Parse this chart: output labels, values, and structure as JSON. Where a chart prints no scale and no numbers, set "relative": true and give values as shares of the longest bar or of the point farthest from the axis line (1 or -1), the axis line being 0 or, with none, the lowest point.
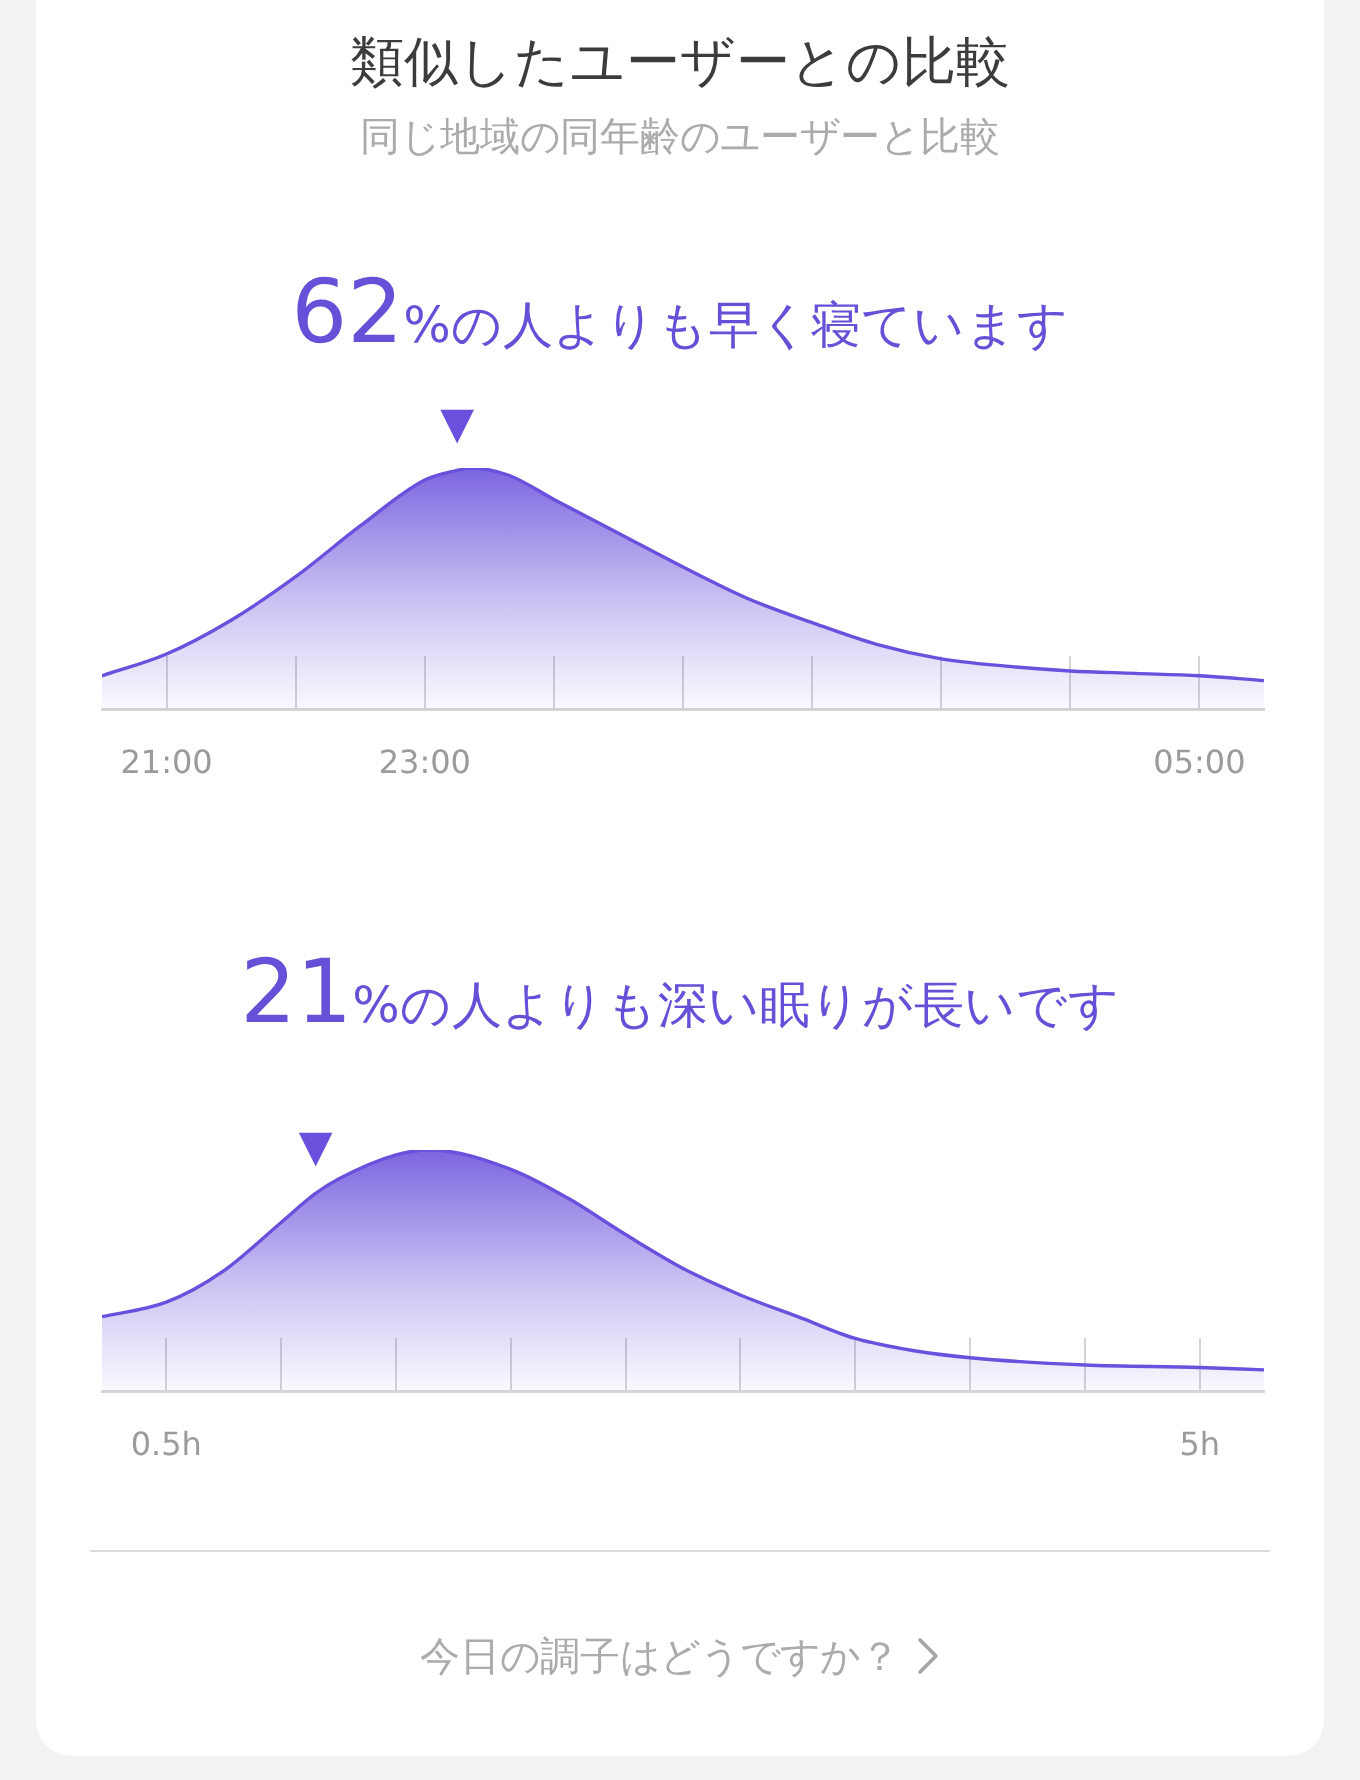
{
  "chart_data": [
    {
      "type": "other",
      "title": "類似したユーザーとの比較",
      "subtitle": "同じ地域の同年齢のユーザーと比較"
    },
    {
      "type": "area",
      "title": "62%の人よりも早く寝ています",
      "relative": true,
      "grid": "x",
      "x": [
        "2000-01-01T20:30",
        "2000-01-01T21:00",
        "2000-01-01T21:30",
        "2000-01-01T22:00",
        "2000-01-01T22:30",
        "2000-01-01T23:00",
        "2000-01-01T23:15",
        "2000-01-01T23:21",
        "2000-01-01T23:39",
        "2000-01-02T00:00",
        "2000-01-02T00:30",
        "2000-01-02T01:00",
        "2000-01-02T01:30",
        "2000-01-02T02:00",
        "2000-01-02T02:30",
        "2000-01-02T03:00",
        "2000-01-02T03:30",
        "2000-01-02T04:00",
        "2000-01-02T04:30",
        "2000-01-02T05:00",
        "2000-01-02T05:30"
      ],
      "series": [
        {
          "color": "#6a50dc",
          "values": [
            0.14,
            0.23,
            0.37,
            0.55,
            0.76,
            0.95,
            0.99,
            1,
            0.97,
            0.87,
            0.73,
            0.59,
            0.46,
            0.36,
            0.27,
            0.21,
            0.18,
            0.16,
            0.15,
            0.14,
            0.12
          ]
        }
      ],
      "xlim": [
        "2000-01-01T20:30",
        "2000-01-02T05:30"
      ],
      "xticks": [
        {
          "value": "2000-01-01T21:00",
          "label": "21:00"
        },
        {
          "value": "2000-01-01T22:00",
          "label": null
        },
        {
          "value": "2000-01-01T23:00",
          "label": "23:00"
        },
        {
          "value": "2000-01-02T00:00",
          "label": null
        },
        {
          "value": "2000-01-02T01:00",
          "label": null
        },
        {
          "value": "2000-01-02T02:00",
          "label": null
        },
        {
          "value": "2000-01-02T03:00",
          "label": null
        },
        {
          "value": "2000-01-02T04:00",
          "label": null
        },
        {
          "value": "2000-01-02T05:00",
          "label": "05:00"
        }
      ],
      "annotations": [
        {
          "text": "▼",
          "x": "2000-01-01T23:15",
          "y": 0.99
        }
      ]
    },
    {
      "type": "area",
      "title": "21%の人よりも深い眠りが長いです",
      "relative": true,
      "grid": "x",
      "x": [
        0.22,
        0.5,
        0.75,
        1,
        1.15,
        1.25,
        1.5,
        1.65,
        2,
        2.25,
        2.5,
        2.75,
        3,
        3.25,
        3.5,
        3.75,
        4,
        4.5,
        5,
        5.28
      ],
      "series": [
        {
          "color": "#6a50dc",
          "values": [
            0.31,
            0.37,
            0.5,
            0.7,
            0.82,
            0.88,
            0.98,
            1,
            0.92,
            0.8,
            0.65,
            0.51,
            0.4,
            0.31,
            0.22,
            0.17,
            0.14,
            0.11,
            0.1,
            0.09
          ]
        }
      ],
      "xlim": [
        0.22,
        5.28
      ],
      "xticks": [
        {
          "value": 0.5,
          "label": "0.5h"
        },
        {
          "value": 1,
          "label": null
        },
        {
          "value": 1.5,
          "label": null
        },
        {
          "value": 2,
          "label": null
        },
        {
          "value": 2.5,
          "label": null
        },
        {
          "value": 3,
          "label": null
        },
        {
          "value": 3.5,
          "label": null
        },
        {
          "value": 4,
          "label": null
        },
        {
          "value": 4.5,
          "label": null
        },
        {
          "value": 5,
          "label": "5h"
        }
      ],
      "annotations": [
        {
          "text": "▼",
          "x": 1.15,
          "y": 0.82
        }
      ]
    },
    {
      "type": "other",
      "annotations": [
        "今日の調子はどうですか？"
      ]
    }
  ]
}
